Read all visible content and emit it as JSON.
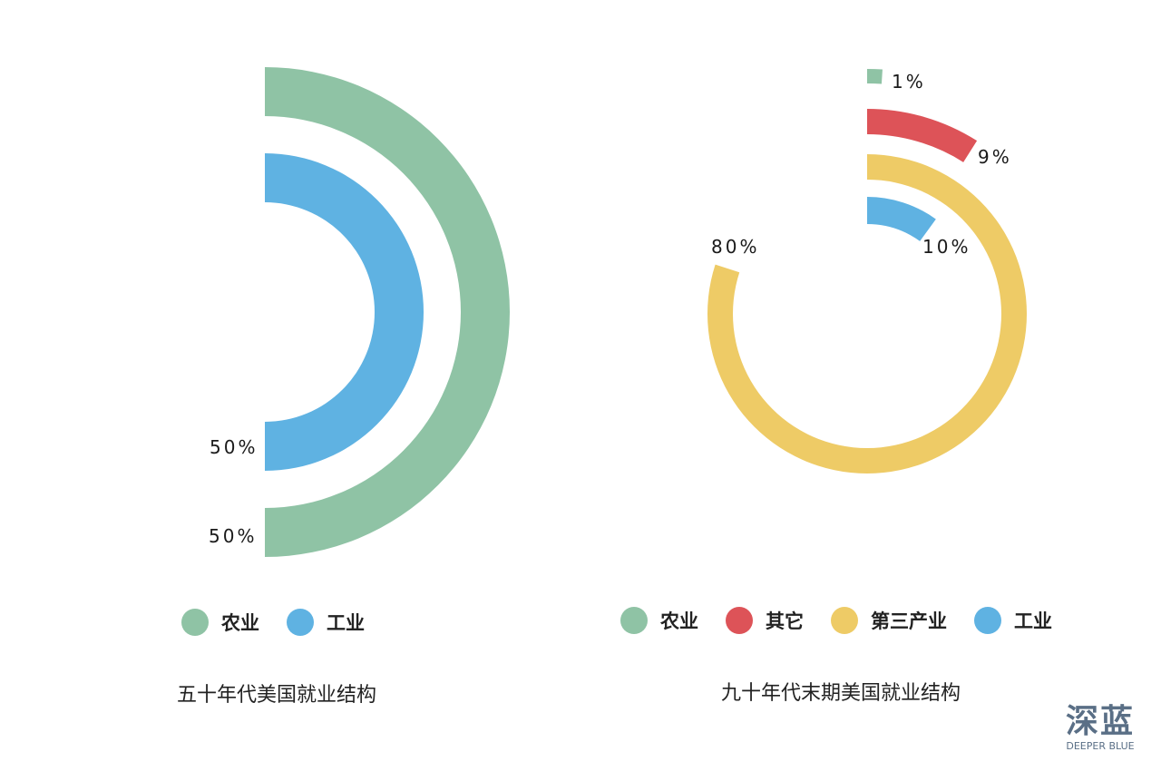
{
  "chart_data": [
    {
      "type": "radial-bar",
      "title": "",
      "caption": "五十年代美国就业结构",
      "series": [
        {
          "name": "农业",
          "value": 50,
          "label": "50%",
          "color": "#8fc3a5"
        },
        {
          "name": "工业",
          "value": 50,
          "label": "50%",
          "color": "#5fb2e2"
        }
      ],
      "legend": {
        "position": "bottom",
        "items": [
          "农业",
          "工业"
        ]
      }
    },
    {
      "type": "radial-bar",
      "title": "",
      "caption": "九十年代末期美国就业结构",
      "series": [
        {
          "name": "农业",
          "value": 1,
          "label": "1%",
          "color": "#8fc3a5"
        },
        {
          "name": "其它",
          "value": 9,
          "label": "9%",
          "color": "#dd5358"
        },
        {
          "name": "第三产业",
          "value": 80,
          "label": "80%",
          "color": "#eecb66"
        },
        {
          "name": "工业",
          "value": 10,
          "label": "10%",
          "color": "#5fb2e2"
        }
      ],
      "legend": {
        "position": "bottom",
        "items": [
          "农业",
          "其它",
          "第三产业",
          "工业"
        ]
      }
    }
  ],
  "watermark": {
    "text_cn": "深蓝",
    "text_en": "DEEPER BLUE"
  }
}
